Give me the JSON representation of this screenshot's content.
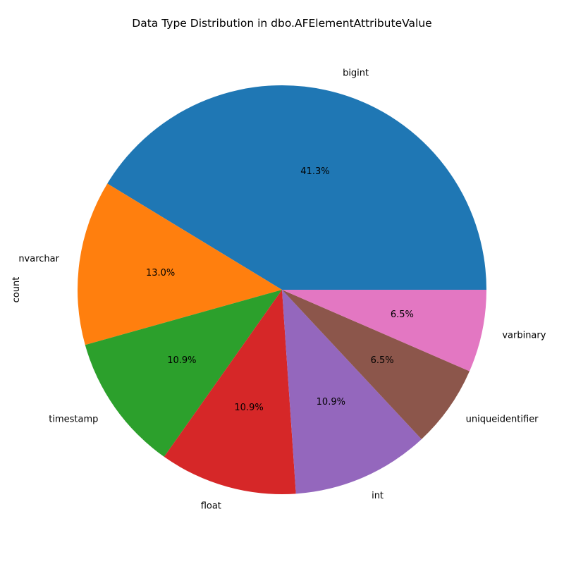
{
  "chart_data": {
    "type": "pie",
    "title": "Data Type Distribution in dbo.AFElementAttributeValue",
    "ylabel": "count",
    "categories": [
      "bigint",
      "nvarchar",
      "timestamp",
      "float",
      "int",
      "uniqueidentifier",
      "varbinary"
    ],
    "values": [
      19,
      6,
      5,
      5,
      5,
      3,
      3
    ],
    "percent_labels": [
      "41.3%",
      "13.0%",
      "10.9%",
      "10.9%",
      "10.9%",
      "6.5%",
      "6.5%"
    ],
    "colors": [
      "#1f77b4",
      "#ff7f0e",
      "#2ca02c",
      "#d62728",
      "#9467bd",
      "#8c564b",
      "#e377c2"
    ],
    "start_angle_deg": 0,
    "direction": "counterclockwise",
    "legend": false
  }
}
